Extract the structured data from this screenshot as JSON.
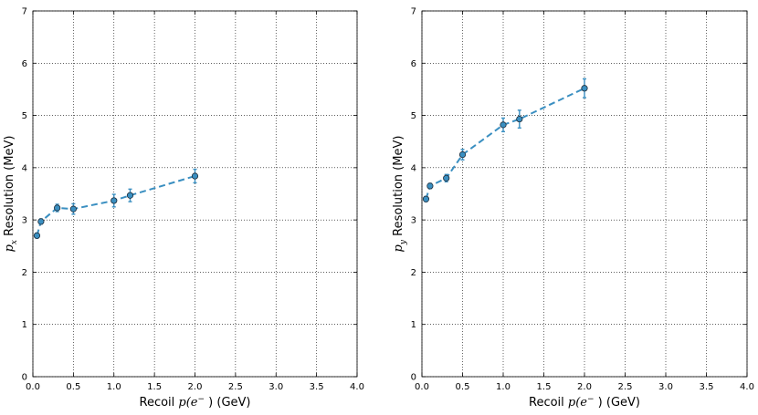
{
  "chart_data": [
    {
      "type": "scatter",
      "title": "",
      "xlabel": "Recoil p(e⁻ ) (GeV)",
      "xlabel_parts": {
        "prefix": "Recoil ",
        "math": "p(e",
        "sup": "−",
        "suffix": " )  (GeV)"
      },
      "ylabel": "p_x Resolution (MeV)",
      "ylabel_parts": {
        "math": "p",
        "sub": "x",
        "text": " Resolution (MeV)"
      },
      "xlim": [
        0.0,
        4.0
      ],
      "ylim": [
        0,
        7
      ],
      "xticks": [
        "0.0",
        "0.5",
        "1.0",
        "1.5",
        "2.0",
        "2.5",
        "3.0",
        "3.5",
        "4.0"
      ],
      "yticks": [
        "0",
        "1",
        "2",
        "3",
        "4",
        "5",
        "6",
        "7"
      ],
      "grid": true,
      "series": [
        {
          "style": "dashed line with circle markers and error bars",
          "color": "#3a8fc1",
          "x": [
            0.05,
            0.1,
            0.3,
            0.5,
            1.0,
            1.2,
            2.0
          ],
          "y": [
            2.7,
            2.97,
            3.23,
            3.21,
            3.37,
            3.47,
            3.84
          ],
          "yerr": [
            0.05,
            0.05,
            0.07,
            0.1,
            0.12,
            0.12,
            0.13
          ]
        }
      ]
    },
    {
      "type": "scatter",
      "title": "",
      "xlabel": "Recoil p(e⁻ ) (GeV)",
      "xlabel_parts": {
        "prefix": "Recoil ",
        "math": "p(e",
        "sup": "−",
        "suffix": " )  (GeV)"
      },
      "ylabel": "p_y Resolution (MeV)",
      "ylabel_parts": {
        "math": "p",
        "sub": "y",
        "text": " Resolution (MeV)"
      },
      "xlim": [
        0.0,
        4.0
      ],
      "ylim": [
        0,
        7
      ],
      "xticks": [
        "0.0",
        "0.5",
        "1.0",
        "1.5",
        "2.0",
        "2.5",
        "3.0",
        "3.5",
        "4.0"
      ],
      "yticks": [
        "0",
        "1",
        "2",
        "3",
        "4",
        "5",
        "6",
        "7"
      ],
      "grid": true,
      "series": [
        {
          "style": "dashed line with circle markers and error bars",
          "color": "#3a8fc1",
          "x": [
            0.05,
            0.1,
            0.3,
            0.5,
            1.0,
            1.2,
            2.0
          ],
          "y": [
            3.4,
            3.65,
            3.8,
            4.25,
            4.82,
            4.93,
            5.52
          ],
          "yerr": [
            0.05,
            0.05,
            0.07,
            0.1,
            0.13,
            0.17,
            0.18
          ]
        }
      ]
    }
  ]
}
